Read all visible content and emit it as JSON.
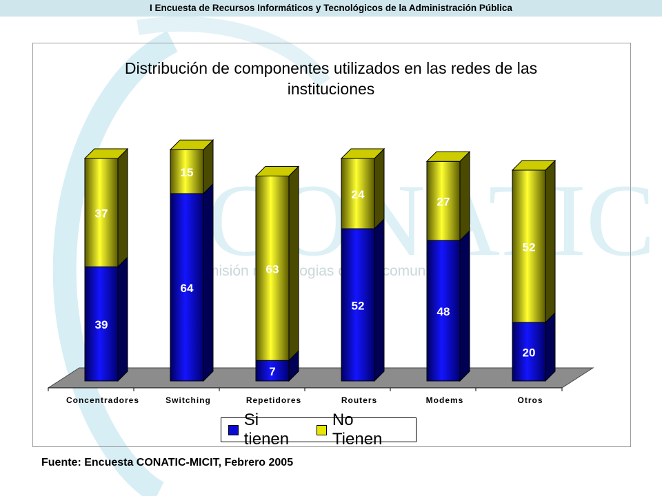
{
  "header": {
    "title": "I Encuesta de Recursos Informáticos y Tecnológicos de la Administración Pública"
  },
  "watermark": {
    "logo_text": "CONATIC",
    "tagline": "misión     nal de      logias      ormac      comunicación"
  },
  "chart_data": {
    "type": "bar",
    "stacked": true,
    "three_d": true,
    "title": "Distribución de componentes utilizados en las redes de las instituciones",
    "categories": [
      "Concentradores",
      "Switching",
      "Repetidores",
      "Routers",
      "Modems",
      "Otros"
    ],
    "series": [
      {
        "name": "Si tienen",
        "values": [
          39,
          64,
          7,
          52,
          48,
          20
        ],
        "color": "#0a0ad2"
      },
      {
        "name": "No Tienen",
        "values": [
          37,
          15,
          63,
          24,
          27,
          52
        ],
        "color": "#e6e600"
      }
    ],
    "ylim": [
      0,
      80
    ],
    "grid": false,
    "legend_position": "bottom"
  },
  "legend": {
    "items": [
      {
        "label": "Si tienen",
        "color": "#0a0ad2"
      },
      {
        "label": "No Tienen",
        "color": "#e6e600"
      }
    ]
  },
  "source": "Fuente: Encuesta CONATIC-MICIT, Febrero 2005"
}
